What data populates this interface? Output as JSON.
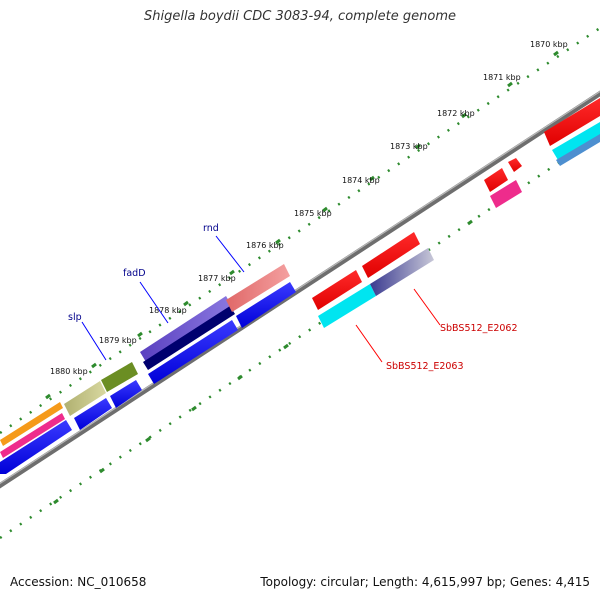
{
  "title": "Shigella boydii CDC 3083-94, complete genome",
  "footer": {
    "accession": "Accession: NC_010658",
    "summary": "Topology: circular; Length: 4,615,997 bp; Genes: 4,415"
  },
  "ruler": {
    "unit": "kbp",
    "ticks": [
      "1870 kbp",
      "1871 kbp",
      "1872 kbp",
      "1873 kbp",
      "1874 kbp",
      "1875 kbp",
      "1876 kbp",
      "1877 kbp",
      "1878 kbp",
      "1879 kbp",
      "1880 kbp"
    ]
  },
  "gene_labels": [
    {
      "text": "slp",
      "color": "#00008b"
    },
    {
      "text": "fadD",
      "color": "#00008b"
    },
    {
      "text": "rnd",
      "color": "#00008b"
    },
    {
      "text": "SbBS512_E2062",
      "color": "#cc0000"
    },
    {
      "text": "SbBS512_E2063",
      "color": "#cc0000"
    }
  ],
  "colors": {
    "backbone": "#7a7a7a",
    "tick": "#2e8b2e",
    "label_line_blue": "#0000ff",
    "label_line_red": "#ff0000"
  }
}
